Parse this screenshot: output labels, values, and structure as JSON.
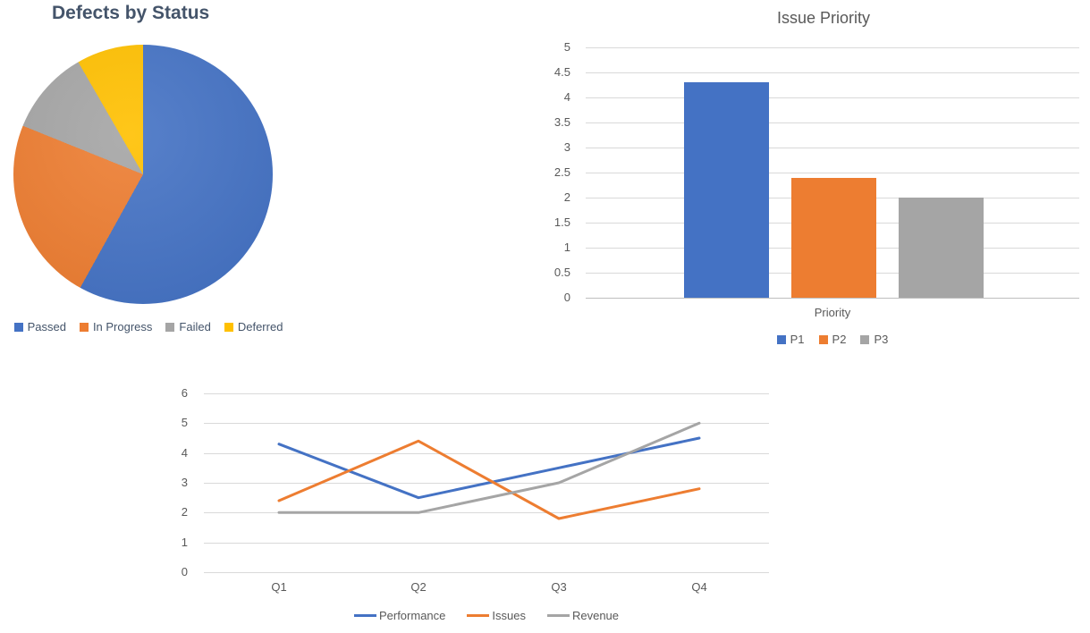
{
  "theme": {
    "background": "#FFFFFF",
    "grid_color": "#D9D9D9",
    "axis_line_color": "#BFBFBF",
    "tick_text_color": "#595959",
    "pie_title_color": "#44546A",
    "bar_title_color": "#595959",
    "palette": [
      "#4472C4",
      "#ED7D31",
      "#A5A5A5",
      "#FFC000"
    ]
  },
  "chart_data": [
    {
      "type": "pie",
      "title": "Defects by Status",
      "legend_position": "bottom",
      "slices": [
        {
          "label": "Passed",
          "percent": 58,
          "angle_deg": 209,
          "color": "#4472C4"
        },
        {
          "label": "In Progress",
          "percent": 23,
          "angle_deg": 83,
          "color": "#ED7D31"
        },
        {
          "label": "Failed",
          "percent": 11,
          "angle_deg": 38,
          "color": "#A5A5A5"
        },
        {
          "label": "Deferred",
          "percent": 8,
          "angle_deg": 30,
          "color": "#FFC000"
        }
      ]
    },
    {
      "type": "bar",
      "title": "Issue Priority",
      "xlabel": "Priority",
      "categories": [
        "Priority"
      ],
      "series": [
        {
          "name": "P1",
          "values": [
            4.3
          ],
          "color": "#4472C4"
        },
        {
          "name": "P2",
          "values": [
            2.4
          ],
          "color": "#ED7D31"
        },
        {
          "name": "P3",
          "values": [
            2
          ],
          "color": "#A5A5A5"
        }
      ],
      "ylim": [
        0,
        5
      ],
      "yticks": [
        "5",
        "4.5",
        "4",
        "3.5",
        "3",
        "2.5",
        "2",
        "1.5",
        "1",
        "0.5",
        "0"
      ],
      "grid": true,
      "legend_position": "bottom"
    },
    {
      "type": "line",
      "title": "",
      "categories": [
        "Q1",
        "Q2",
        "Q3",
        "Q4"
      ],
      "series": [
        {
          "name": "Performance",
          "values": [
            4.3,
            2.5,
            3.5,
            4.5
          ],
          "color": "#4472C4"
        },
        {
          "name": "Issues",
          "values": [
            2.4,
            4.4,
            1.8,
            2.8
          ],
          "color": "#ED7D31"
        },
        {
          "name": "Revenue",
          "values": [
            2,
            2,
            3,
            5
          ],
          "color": "#A5A5A5"
        }
      ],
      "ylim": [
        0,
        6
      ],
      "yticks": [
        "6",
        "5",
        "4",
        "3",
        "2",
        "1",
        "0"
      ],
      "grid": true,
      "legend_position": "bottom"
    }
  ]
}
